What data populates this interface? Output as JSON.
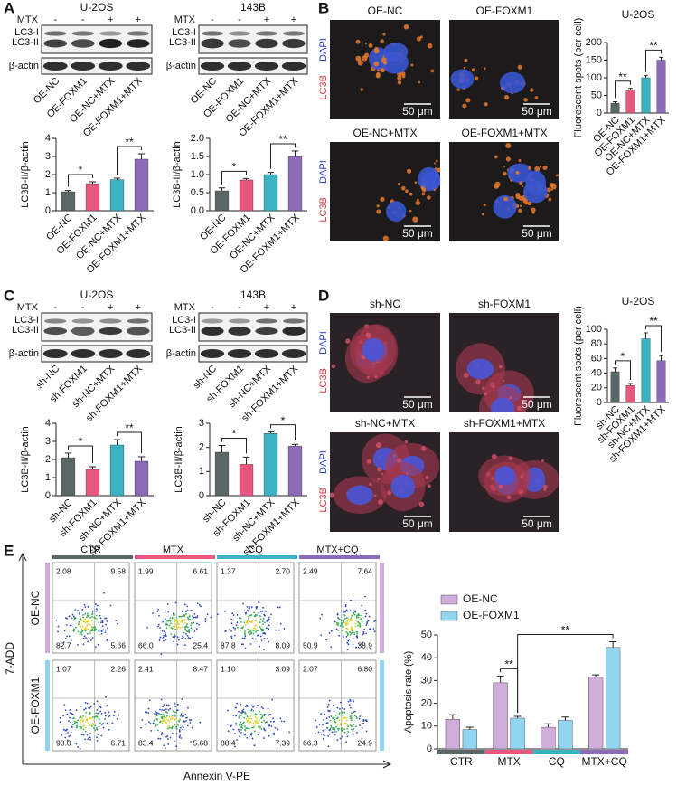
{
  "panel_labels": [
    "A",
    "B",
    "C",
    "D",
    "E"
  ],
  "blots": [
    {
      "title": "U-2OS",
      "treatment": "MTX",
      "signs": [
        "-",
        "-",
        "+",
        "+"
      ],
      "bands": [
        "LC3-I",
        "LC3-II",
        "β-actin"
      ],
      "lanes": [
        "OE-NC",
        "OE-FOXM1",
        "OE-NC+MTX",
        "OE-FOXM1+MTX"
      ]
    },
    {
      "title": "143B",
      "treatment": "MTX",
      "signs": [
        "-",
        "-",
        "+",
        "+"
      ],
      "bands": [
        "LC3-I",
        "LC3-II",
        "β-actin"
      ],
      "lanes": [
        "OE-NC",
        "OE-FOXM1",
        "OE-NC+MTX",
        "OE-FOXM1+MTX"
      ]
    },
    {
      "title": "U-2OS",
      "treatment": "MTX",
      "signs": [
        "-",
        "-",
        "+",
        "+"
      ],
      "bands": [
        "LC3-I",
        "LC3-II",
        "β-actin"
      ],
      "lanes": [
        "sh-NC",
        "sh-FOXM1",
        "sh-NC+MTX",
        "sh-FOXM1+MTX"
      ]
    },
    {
      "title": "143B",
      "treatment": "MTX",
      "signs": [
        "-",
        "-",
        "+",
        "+"
      ],
      "bands": [
        "LC3-I",
        "LC3-II",
        "β-actin"
      ],
      "lanes": [
        "sh-NC",
        "sh-FOXM1",
        "sh-NC+MTX",
        "sh-FOXM1+MTX"
      ]
    }
  ],
  "micrographs": [
    {
      "labels": [
        "OE-NC",
        "OE-FOXM1",
        "OE-NC+MTX",
        "OE-FOXM1+MTX"
      ],
      "stains": [
        "LC3B",
        "DAPI"
      ],
      "scale": "50 μm"
    },
    {
      "labels": [
        "sh-NC",
        "sh-FOXM1",
        "sh-NC+MTX",
        "sh-FOXM1+MTX"
      ],
      "stains": [
        "LC3B",
        "DAPI"
      ],
      "scale": "50 μm"
    }
  ],
  "flow": {
    "conditions": [
      "CTR",
      "MTX",
      "CQ",
      "MTX+CQ"
    ],
    "condition_colors": [
      "#5b6767",
      "#e9577f",
      "#3bb3c3",
      "#8e6bb8"
    ],
    "groups": [
      "OE-NC",
      "OE-FOXM1"
    ],
    "group_colors": [
      "#cfaedb",
      "#93d5f0"
    ],
    "quadrants": [
      [
        [
          "2.08",
          "9.58",
          "82.7",
          "5.66"
        ],
        [
          "1.99",
          "6.61",
          "66.0",
          "25.4"
        ],
        [
          "1.37",
          "2.70",
          "87.8",
          "8.09"
        ],
        [
          "2.49",
          "7.64",
          "50.9",
          "38.9"
        ]
      ],
      [
        [
          "1.07",
          "2.26",
          "90.0",
          "6.71"
        ],
        [
          "2.41",
          "8.47",
          "83.4",
          "5.68"
        ],
        [
          "1.10",
          "3.09",
          "88.4",
          "7.39"
        ],
        [
          "2.07",
          "6.80",
          "66.3",
          "24.9"
        ]
      ]
    ],
    "ylabel": "7-ADD",
    "xlabel": "Annexin V-PE"
  },
  "chart_data": [
    {
      "type": "bar",
      "ylabel": "LC3B-II/β-actin",
      "categories": [
        "OE-NC",
        "OE-FOXM1",
        "OE-NC+MTX",
        "OE-FOXM1+MTX"
      ],
      "values": [
        1.05,
        1.5,
        1.72,
        2.85
      ],
      "errors": [
        0.07,
        0.1,
        0.08,
        0.3
      ],
      "colors": [
        "#5b6767",
        "#e9577f",
        "#3bb3c3",
        "#8e6bb8"
      ],
      "ylim": [
        0,
        4
      ],
      "yticks": [
        0,
        1,
        2,
        3,
        4
      ],
      "annotations": [
        {
          "text": "*",
          "from": 0,
          "to": 1
        },
        {
          "text": "**",
          "from": 2,
          "to": 3
        }
      ]
    },
    {
      "type": "bar",
      "ylabel": "LC3B-II/β-actin",
      "categories": [
        "OE-NC",
        "OE-FOXM1",
        "OE-NC+MTX",
        "OE-FOXM1+MTX"
      ],
      "values": [
        0.55,
        0.85,
        1.0,
        1.5
      ],
      "errors": [
        0.08,
        0.04,
        0.06,
        0.15
      ],
      "colors": [
        "#5b6767",
        "#e9577f",
        "#3bb3c3",
        "#8e6bb8"
      ],
      "ylim": [
        0,
        2
      ],
      "yticks": [
        {
          "value": 0,
          "label": "0.0"
        },
        {
          "value": 0.5,
          "label": "0.5"
        },
        {
          "value": 1,
          "label": "1.0"
        },
        {
          "value": 1.5,
          "label": "1.5"
        },
        {
          "value": 2,
          "label": "2.0"
        }
      ],
      "annotations": [
        {
          "text": "*",
          "from": 0,
          "to": 1
        },
        {
          "text": "**",
          "from": 2,
          "to": 3
        }
      ]
    },
    {
      "type": "bar",
      "title": "U-2OS",
      "ylabel": "Fluorescent spots (per cell)",
      "categories": [
        "OE-NC",
        "OE-FOXM1",
        "OE-NC+MTX",
        "OE-FOXM1+MTX"
      ],
      "values": [
        28,
        65,
        100,
        150
      ],
      "errors": [
        4,
        5,
        6,
        8
      ],
      "colors": [
        "#5b6767",
        "#e9577f",
        "#3bb3c3",
        "#8e6bb8"
      ],
      "ylim": [
        0,
        200
      ],
      "yticks": [
        0,
        50,
        100,
        150,
        200
      ],
      "annotations": [
        {
          "text": "**",
          "from": 0,
          "to": 1
        },
        {
          "text": "**",
          "from": 2,
          "to": 3
        }
      ]
    },
    {
      "type": "bar",
      "ylabel": "LC3B-II/β-actin",
      "categories": [
        "sh-NC",
        "sh-FOXM1",
        "sh-NC+MTX",
        "sh-FOXM1+MTX"
      ],
      "values": [
        2.1,
        1.45,
        2.8,
        1.9
      ],
      "errors": [
        0.25,
        0.15,
        0.3,
        0.25
      ],
      "colors": [
        "#5b6767",
        "#e9577f",
        "#3bb3c3",
        "#8e6bb8"
      ],
      "ylim": [
        0,
        4
      ],
      "yticks": [
        0,
        1,
        2,
        3,
        4
      ],
      "annotations": [
        {
          "text": "*",
          "from": 0,
          "to": 1
        },
        {
          "text": "**",
          "from": 2,
          "to": 3
        }
      ]
    },
    {
      "type": "bar",
      "ylabel": "LC3B-II/β-actin",
      "categories": [
        "sh-NC",
        "sh-FOXM1",
        "sh-NC+MTX",
        "sh-FOXM1+MTX"
      ],
      "values": [
        1.8,
        1.3,
        2.58,
        2.05
      ],
      "errors": [
        0.28,
        0.3,
        0.06,
        0.08
      ],
      "colors": [
        "#5b6767",
        "#e9577f",
        "#3bb3c3",
        "#8e6bb8"
      ],
      "ylim": [
        0,
        3
      ],
      "yticks": [
        0,
        1,
        2,
        3
      ],
      "annotations": [
        {
          "text": "*",
          "from": 0,
          "to": 1
        },
        {
          "text": "*",
          "from": 2,
          "to": 3
        }
      ]
    },
    {
      "type": "bar",
      "title": "U-2OS",
      "ylabel": "Fluorescent spots (per cell)",
      "categories": [
        "sh-NC",
        "sh-FOXM1",
        "sh-NC+MTX",
        "sh-FOXM1+MTX"
      ],
      "values": [
        42,
        23,
        87,
        57
      ],
      "errors": [
        5,
        3,
        8,
        7
      ],
      "colors": [
        "#5b6767",
        "#e9577f",
        "#3bb3c3",
        "#8e6bb8"
      ],
      "ylim": [
        0,
        100
      ],
      "yticks": [
        0,
        20,
        40,
        60,
        80,
        100
      ],
      "annotations": [
        {
          "text": "*",
          "from": 0,
          "to": 1
        },
        {
          "text": "**",
          "from": 2,
          "to": 3
        }
      ]
    },
    {
      "type": "bar",
      "ylabel": "Apoptosis rate (%)",
      "categories": [
        "CTR",
        "MTX",
        "CQ",
        "MTX+CQ"
      ],
      "category_colors": [
        "#5b6767",
        "#e9577f",
        "#3bb3c3",
        "#8e6bb8"
      ],
      "series": [
        {
          "name": "OE-NC",
          "color": "#cfaedb",
          "values": [
            13,
            29,
            9.5,
            31.5
          ],
          "errors": [
            2,
            3,
            1.5,
            1
          ]
        },
        {
          "name": "OE-FOXM1",
          "color": "#93d5f0",
          "values": [
            8.5,
            13.5,
            12.5,
            44.5
          ],
          "errors": [
            1,
            0.8,
            1.5,
            2.5
          ]
        }
      ],
      "ylim": [
        0,
        50
      ],
      "yticks": [
        0,
        10,
        20,
        30,
        40,
        50
      ],
      "legend": "upper left",
      "annotations": [
        {
          "text": "**",
          "from": [
            1,
            0
          ],
          "to": [
            1,
            1
          ]
        },
        {
          "text": "**",
          "from": [
            1,
            1
          ],
          "to": [
            3,
            1
          ]
        }
      ]
    }
  ]
}
